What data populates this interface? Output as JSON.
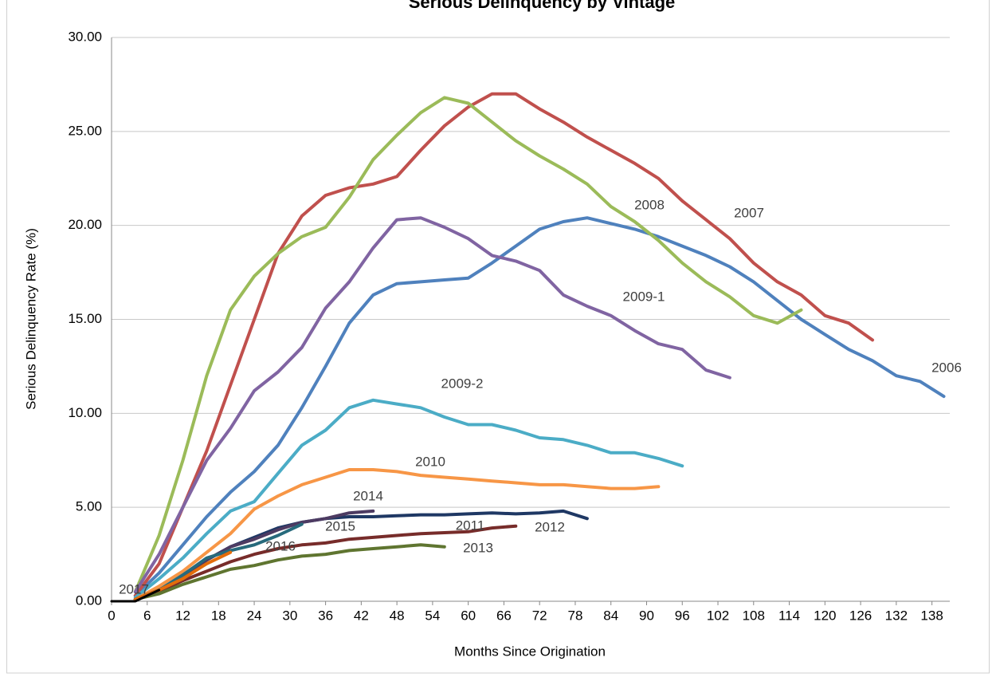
{
  "chart_data": {
    "type": "line",
    "title": "Serious Delinquency by Vintage",
    "x_label": "Months Since Origination",
    "y_label": "Serious Delinquency Rate (%)",
    "x": [
      0,
      4,
      8,
      12,
      16,
      20,
      24,
      28,
      32,
      36,
      40,
      44,
      48,
      52,
      56,
      60,
      64,
      68,
      72,
      76,
      80,
      84,
      88,
      92,
      96,
      100,
      104,
      108,
      112,
      116,
      120,
      124,
      128,
      132,
      136,
      140
    ],
    "xlim": [
      0,
      141
    ],
    "xticks": [
      0,
      6,
      12,
      18,
      24,
      30,
      36,
      42,
      48,
      54,
      60,
      66,
      72,
      78,
      84,
      90,
      96,
      102,
      108,
      114,
      120,
      126,
      132,
      138
    ],
    "ylim": [
      0,
      30
    ],
    "yticks": [
      {
        "value": 0,
        "label": "0.00"
      },
      {
        "value": 5,
        "label": "5.00"
      },
      {
        "value": 10,
        "label": "10.00"
      },
      {
        "value": 15,
        "label": "15.00"
      },
      {
        "value": 20,
        "label": "20.00"
      },
      {
        "value": 25,
        "label": "25.00"
      },
      {
        "value": 30,
        "label": "30.00"
      }
    ],
    "grid": true,
    "series": [
      {
        "name": "2006",
        "color": "#4f81bd",
        "values": [
          null,
          0.3,
          1.5,
          3.0,
          4.5,
          5.8,
          6.9,
          8.3,
          10.3,
          12.5,
          14.8,
          16.3,
          16.9,
          17.0,
          17.1,
          17.2,
          18.0,
          18.9,
          19.8,
          20.2,
          20.4,
          20.1,
          19.8,
          19.4,
          18.9,
          18.4,
          17.8,
          17.0,
          16.0,
          15.0,
          14.2,
          13.4,
          12.8,
          12.0,
          11.7,
          10.9
        ]
      },
      {
        "name": "2007",
        "color": "#c0504d",
        "values": [
          null,
          0.3,
          2.0,
          5.0,
          8.0,
          11.5,
          15.0,
          18.5,
          20.5,
          21.6,
          22.0,
          22.2,
          22.6,
          24.0,
          25.3,
          26.3,
          27.0,
          27.0,
          26.2,
          25.5,
          24.7,
          24.0,
          23.3,
          22.5,
          21.3,
          20.3,
          19.3,
          18.0,
          17.0,
          16.3,
          15.2,
          14.8,
          13.9,
          null,
          null,
          null
        ]
      },
      {
        "name": "2008",
        "color": "#9bbb59",
        "values": [
          null,
          0.5,
          3.5,
          7.5,
          12.0,
          15.5,
          17.3,
          18.5,
          19.4,
          19.9,
          21.5,
          23.5,
          24.8,
          26.0,
          26.8,
          26.5,
          25.5,
          24.5,
          23.7,
          23.0,
          22.2,
          21.0,
          20.2,
          19.2,
          18.0,
          17.0,
          16.2,
          15.2,
          14.8,
          15.5,
          null,
          null,
          null,
          null,
          null,
          null
        ]
      },
      {
        "name": "2009-1",
        "color": "#8064a2",
        "values": [
          null,
          0.5,
          2.5,
          5.0,
          7.5,
          9.2,
          11.2,
          12.2,
          13.5,
          15.6,
          17.0,
          18.8,
          20.3,
          20.4,
          19.9,
          19.3,
          18.4,
          18.1,
          17.6,
          16.3,
          15.7,
          15.2,
          14.4,
          13.7,
          13.4,
          12.3,
          11.9,
          null,
          null,
          null,
          null,
          null,
          null,
          null,
          null,
          null
        ]
      },
      {
        "name": "2009-2",
        "color": "#4bacc6",
        "values": [
          null,
          0.2,
          1.2,
          2.3,
          3.6,
          4.8,
          5.3,
          6.8,
          8.3,
          9.1,
          10.3,
          10.7,
          10.5,
          10.3,
          9.8,
          9.4,
          9.4,
          9.1,
          8.7,
          8.6,
          8.3,
          7.9,
          7.9,
          7.6,
          7.2,
          null,
          null,
          null,
          null,
          null,
          null,
          null,
          null,
          null,
          null,
          null
        ]
      },
      {
        "name": "2010",
        "color": "#f79646",
        "values": [
          null,
          0.1,
          0.8,
          1.6,
          2.6,
          3.6,
          4.9,
          5.6,
          6.2,
          6.6,
          7.0,
          7.0,
          6.9,
          6.7,
          6.6,
          6.5,
          6.4,
          6.3,
          6.2,
          6.2,
          6.1,
          6.0,
          6.0,
          6.1,
          null,
          null,
          null,
          null,
          null,
          null,
          null,
          null,
          null,
          null,
          null,
          null
        ]
      },
      {
        "name": "2011",
        "color": "#1f3864",
        "values": [
          null,
          0.1,
          0.6,
          1.3,
          2.2,
          2.9,
          3.4,
          3.9,
          4.2,
          4.4,
          4.5,
          4.5,
          4.55,
          4.6,
          4.6,
          4.65,
          4.7,
          4.65,
          4.7,
          4.8,
          4.4,
          null,
          null,
          null,
          null,
          null,
          null,
          null,
          null,
          null,
          null,
          null,
          null,
          null,
          null,
          null
        ]
      },
      {
        "name": "2012",
        "color": "#772c2a",
        "values": [
          null,
          0.1,
          0.5,
          1.1,
          1.6,
          2.1,
          2.5,
          2.8,
          3.0,
          3.1,
          3.3,
          3.4,
          3.5,
          3.6,
          3.65,
          3.7,
          3.9,
          4.0,
          null,
          null,
          null,
          null,
          null,
          null,
          null,
          null,
          null,
          null,
          null,
          null,
          null,
          null,
          null,
          null,
          null,
          null
        ]
      },
      {
        "name": "2013",
        "color": "#5f7530",
        "values": [
          null,
          0.1,
          0.4,
          0.9,
          1.3,
          1.7,
          1.9,
          2.2,
          2.4,
          2.5,
          2.7,
          2.8,
          2.9,
          3.0,
          2.9,
          null,
          null,
          null,
          null,
          null,
          null,
          null,
          null,
          null,
          null,
          null,
          null,
          null,
          null,
          null,
          null,
          null,
          null,
          null,
          null,
          null
        ]
      },
      {
        "name": "2014",
        "color": "#4d3b62",
        "values": [
          null,
          0.1,
          0.6,
          1.3,
          2.2,
          2.9,
          3.3,
          3.8,
          4.2,
          4.4,
          4.7,
          4.8,
          null,
          null,
          null,
          null,
          null,
          null,
          null,
          null,
          null,
          null,
          null,
          null,
          null,
          null,
          null,
          null,
          null,
          null,
          null,
          null,
          null,
          null,
          null,
          null
        ]
      },
      {
        "name": "2015",
        "color": "#276a7c",
        "values": [
          null,
          0.1,
          0.6,
          1.4,
          2.3,
          2.7,
          3.0,
          3.5,
          4.1,
          null,
          null,
          null,
          null,
          null,
          null,
          null,
          null,
          null,
          null,
          null,
          null,
          null,
          null,
          null,
          null,
          null,
          null,
          null,
          null,
          null,
          null,
          null,
          null,
          null,
          null,
          null
        ]
      },
      {
        "name": "2016",
        "color": "#e46c0a",
        "values": [
          null,
          0.1,
          0.6,
          1.2,
          2.0,
          2.6,
          null,
          null,
          null,
          null,
          null,
          null,
          null,
          null,
          null,
          null,
          null,
          null,
          null,
          null,
          null,
          null,
          null,
          null,
          null,
          null,
          null,
          null,
          null,
          null,
          null,
          null,
          null,
          null,
          null,
          null
        ]
      },
      {
        "name": "2017",
        "color": "#000000",
        "values": [
          0,
          0.0,
          0.6,
          null,
          null,
          null,
          null,
          null,
          null,
          null,
          null,
          null,
          null,
          null,
          null,
          null,
          null,
          null,
          null,
          null,
          null,
          null,
          null,
          null,
          null,
          null,
          null,
          null,
          null,
          null,
          null,
          null,
          null,
          null,
          null,
          null
        ]
      }
    ]
  }
}
